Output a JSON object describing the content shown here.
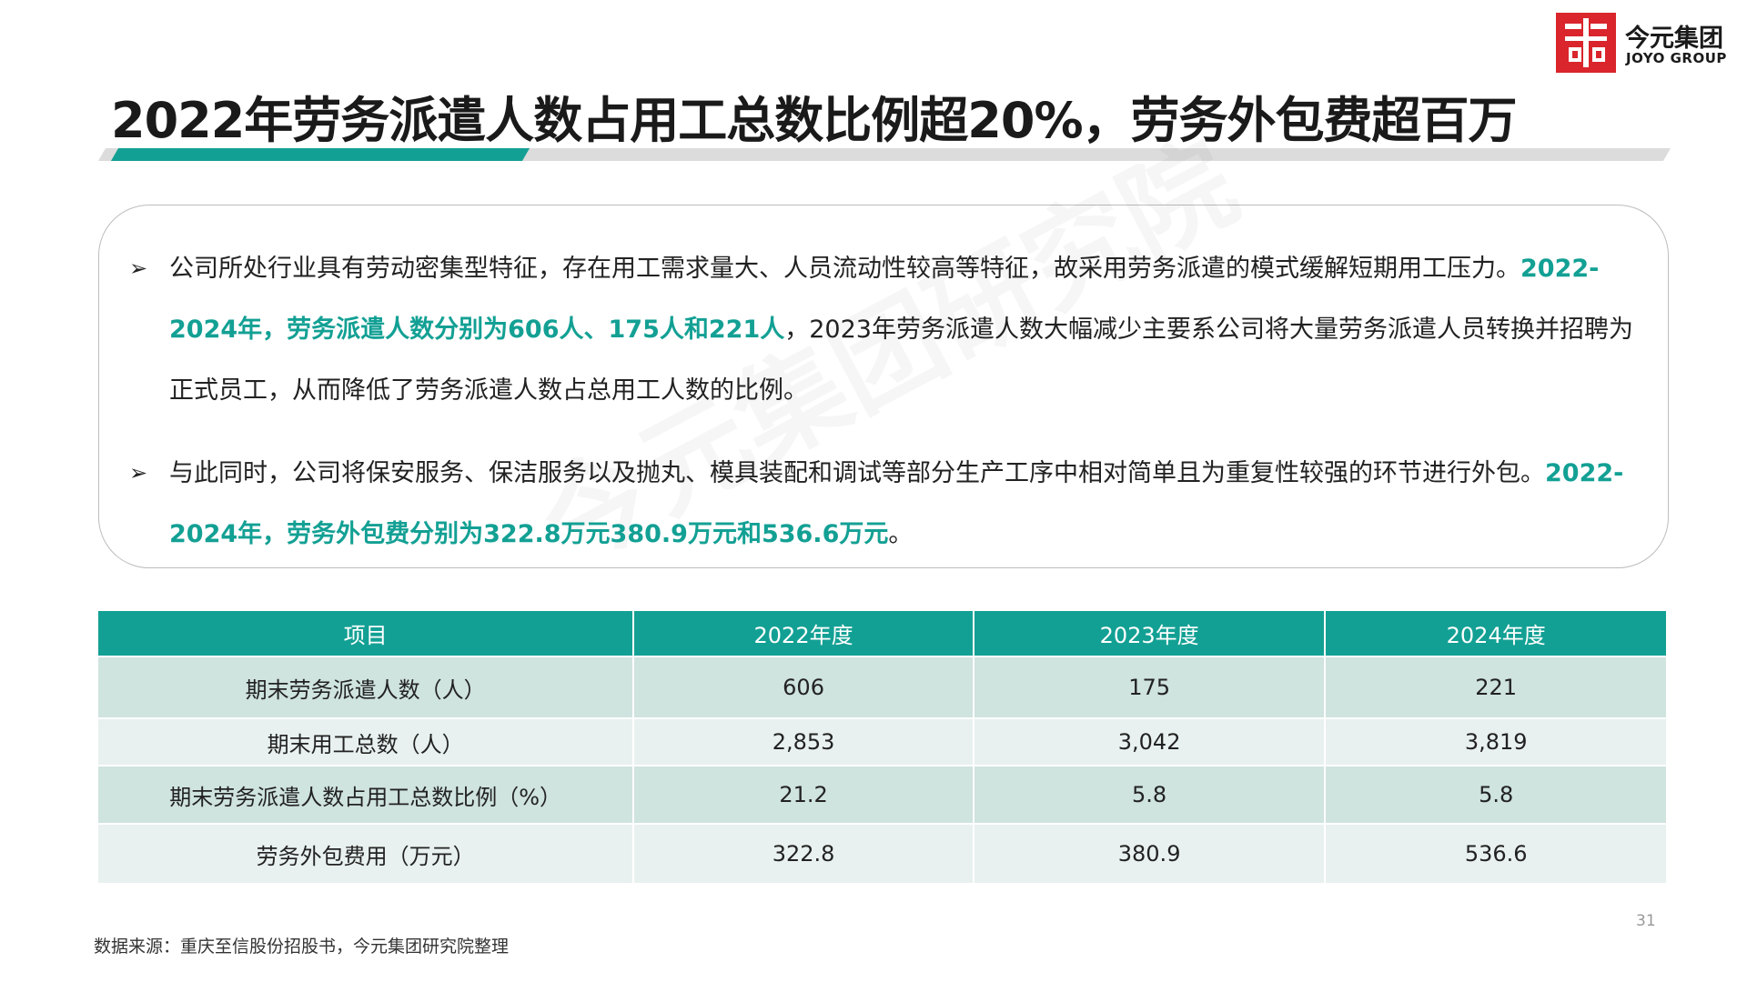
{
  "header": {
    "title": "2022年劳务派遣人数占用工总数比例超20%，劳务外包费超百万",
    "logo_name": "今元集团",
    "logo_sub": "JOYO GROUP"
  },
  "watermark": "今元集团研究院",
  "bullets": [
    {
      "segments": [
        {
          "text": "公司所处行业具有劳动密集型特征，存在用工需求量大、人员流动性较高等特征，故采用劳务派遣的模式缓解短期用工压力。",
          "highlight": false
        },
        {
          "text": "2022-2024年，劳务派遣人数分别为606人、175人和221人",
          "highlight": true
        },
        {
          "text": "，2023年劳务派遣人数大幅减少主要系公司将大量劳务派遣人员转换并招聘为正式员工，从而降低了劳务派遣人数占总用工人数的比例。",
          "highlight": false
        }
      ]
    },
    {
      "segments": [
        {
          "text": "与此同时，公司将保安服务、保洁服务以及抛丸、模具装配和调试等部分生产工序中相对简单且为重复性较强的环节进行外包。",
          "highlight": false
        },
        {
          "text": "2022-2024年，劳务外包费分别为322.8万元380.9万元和536.6万元",
          "highlight": true
        },
        {
          "text": "。",
          "highlight": false
        }
      ]
    }
  ],
  "table": {
    "header": [
      "项目",
      "2022年度",
      "2023年度",
      "2024年度"
    ],
    "rows": [
      [
        "期末劳务派遣人数（人）",
        "606",
        "175",
        "221"
      ],
      [
        "期末用工总数（人）",
        "2,853",
        "3,042",
        "3,819"
      ],
      [
        "期末劳务派遣人数占用工总数比例（%）",
        "21.2",
        "5.8",
        "5.8"
      ],
      [
        "劳务外包费用（万元）",
        "322.8",
        "380.9",
        "536.6"
      ]
    ]
  },
  "page_number": "31",
  "source": "数据来源：重庆至信股份招股书，今元集团研究院整理"
}
